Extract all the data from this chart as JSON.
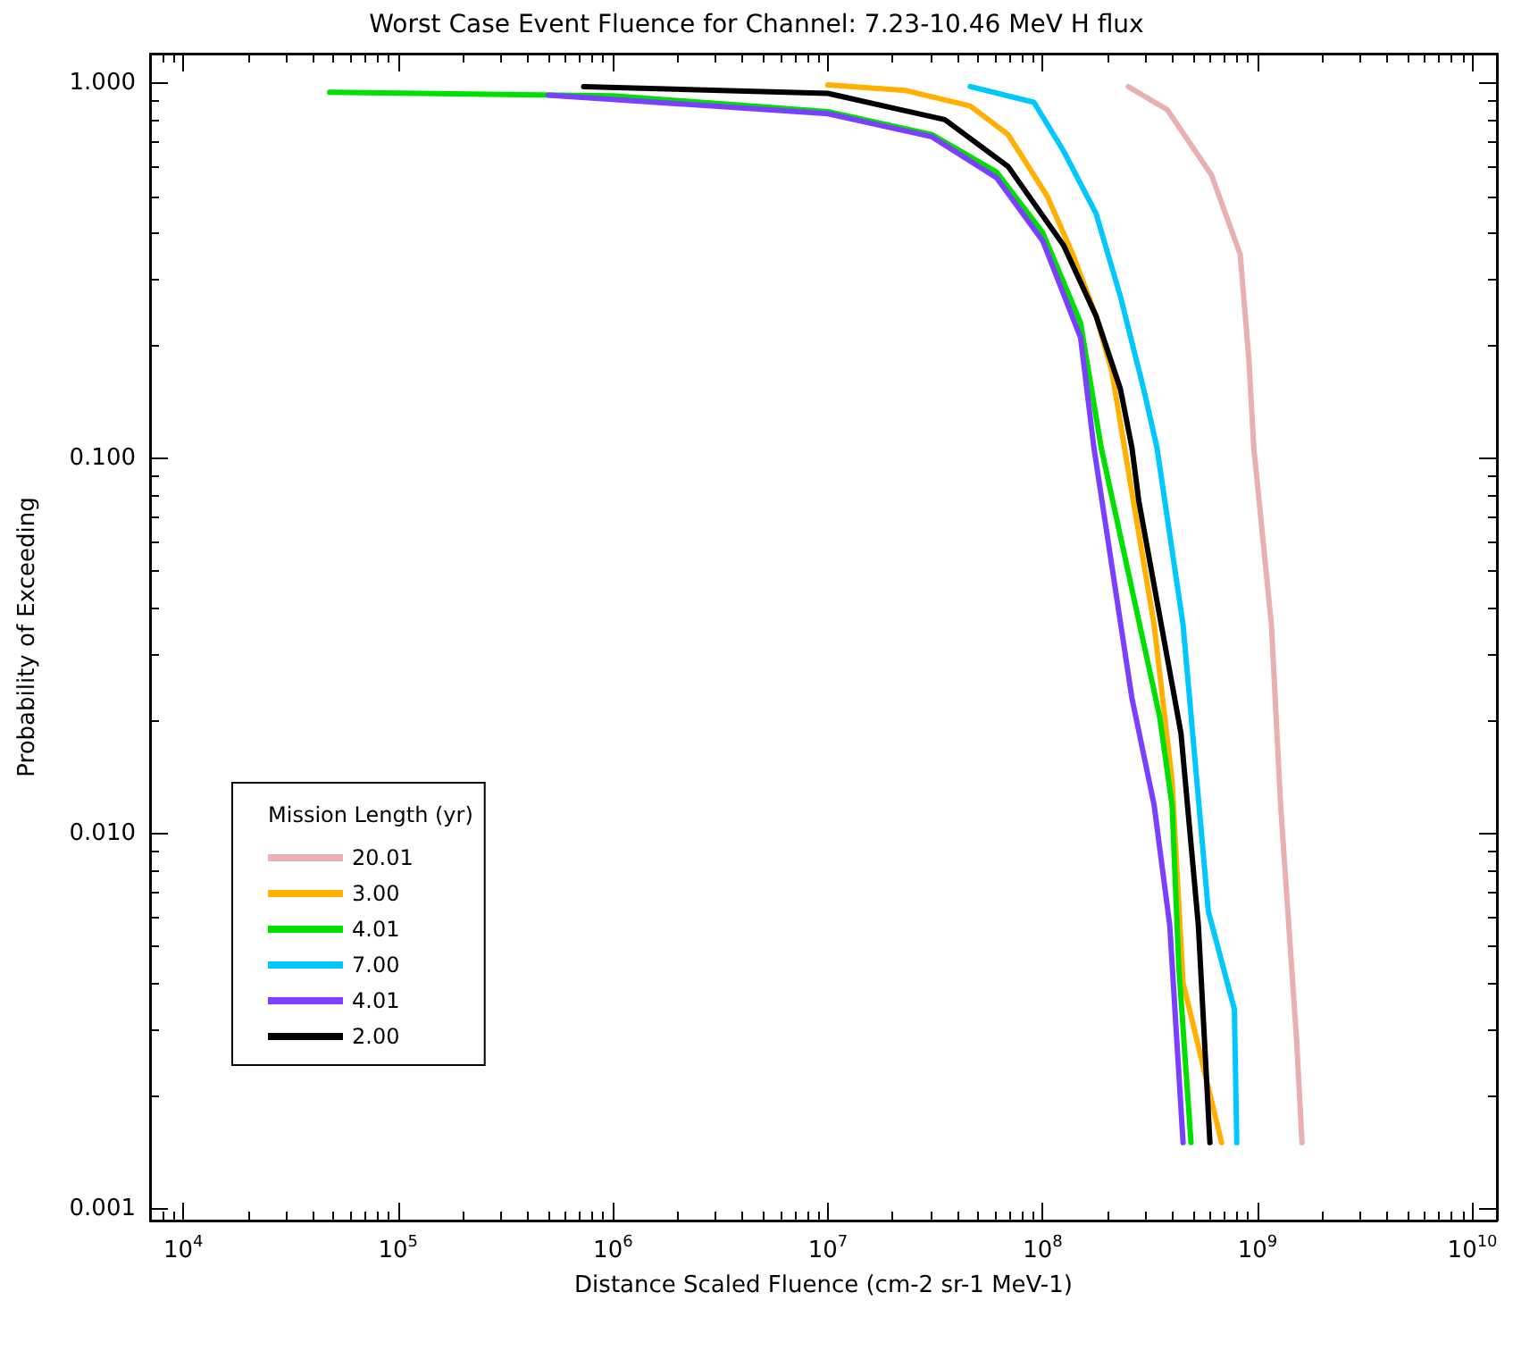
{
  "chart_data": {
    "type": "line",
    "title": "Worst Case Event Fluence for Channel: 7.23-10.46 MeV H flux",
    "xlabel": "Distance Scaled Fluence (cm-2 sr-1 MeV-1)",
    "ylabel": "Probability of Exceeding",
    "legend_title": "Mission Length (yr)",
    "log": "xy",
    "grid": false,
    "legend": "bottom left",
    "marker": "none",
    "line_style": "solid",
    "xlim": [
      7000,
      13000000000
    ],
    "ylim": [
      0.00093,
      1.2
    ],
    "xticks": [
      {
        "value": 10000,
        "label": "10$^{4}$"
      },
      {
        "value": 100000,
        "label": "10$^{5}$"
      },
      {
        "value": 1000000,
        "label": "10$^{6}$"
      },
      {
        "value": 10000000,
        "label": "10$^{7}$"
      },
      {
        "value": 100000000,
        "label": "10$^{8}$"
      },
      {
        "value": 1000000000,
        "label": "10$^{9}$"
      },
      {
        "value": 10000000000,
        "label": "10$^{10}$"
      }
    ],
    "yticks": [
      {
        "value": 0.001,
        "label": "0.001"
      },
      {
        "value": 0.01,
        "label": "0.010"
      },
      {
        "value": 0.1,
        "label": "0.100"
      },
      {
        "value": 1,
        "label": "1.000"
      }
    ],
    "series": [
      {
        "name": "20.01",
        "color": "#e8b0b0",
        "x": [
          250000000,
          380000000,
          610000000,
          830000000,
          910000000,
          960000000,
          1160000000,
          1280000000,
          1520000000,
          1610000000
        ],
        "values": [
          0.98,
          0.85,
          0.57,
          0.35,
          0.185,
          0.107,
          0.036,
          0.0119,
          0.0028,
          0.0015
        ]
      },
      {
        "name": "3.00",
        "color": "#ffb000",
        "x": [
          10000000,
          23000000,
          46000000,
          69000000,
          105000000,
          138000000,
          177000000,
          210000000,
          240000000,
          330000000,
          400000000,
          450000000,
          680000000
        ],
        "values": [
          0.99,
          0.957,
          0.87,
          0.73,
          0.5,
          0.35,
          0.24,
          0.17,
          0.107,
          0.036,
          0.0138,
          0.004,
          0.0015
        ]
      },
      {
        "name": "4.01",
        "color": "#00e000",
        "x": [
          48000,
          1000000,
          10000000,
          30500000,
          61000000,
          100000000,
          150000000,
          187000000,
          350000000,
          400000000,
          430000000,
          490000000
        ],
        "values": [
          0.946,
          0.926,
          0.84,
          0.73,
          0.58,
          0.4,
          0.23,
          0.107,
          0.0205,
          0.0119,
          0.0044,
          0.0015
        ]
      },
      {
        "name": "7.00",
        "color": "#00c8ff",
        "x": [
          46000000,
          91000000,
          125000000,
          177000000,
          230000000,
          295000000,
          340000000,
          450000000,
          590000000,
          780000000,
          800000000
        ],
        "values": [
          0.98,
          0.89,
          0.66,
          0.45,
          0.27,
          0.153,
          0.107,
          0.036,
          0.0062,
          0.0034,
          0.0015
        ]
      },
      {
        "name": "4.01",
        "color": "#7b3fff",
        "x": [
          500000,
          10000000,
          30500000,
          61000000,
          100000000,
          150000000,
          173000000,
          260000000,
          330000000,
          390000000,
          450000000
        ],
        "values": [
          0.93,
          0.83,
          0.72,
          0.56,
          0.38,
          0.21,
          0.107,
          0.023,
          0.0119,
          0.0057,
          0.0015
        ]
      },
      {
        "name": "2.00",
        "color": "#000000",
        "x": [
          730000,
          10000000,
          35000000,
          69000000,
          125000000,
          177000000,
          230000000,
          260000000,
          280000000,
          440000000,
          530000000,
          600000000
        ],
        "values": [
          0.98,
          0.94,
          0.8,
          0.6,
          0.37,
          0.24,
          0.153,
          0.107,
          0.077,
          0.0185,
          0.0057,
          0.0015
        ]
      }
    ]
  }
}
